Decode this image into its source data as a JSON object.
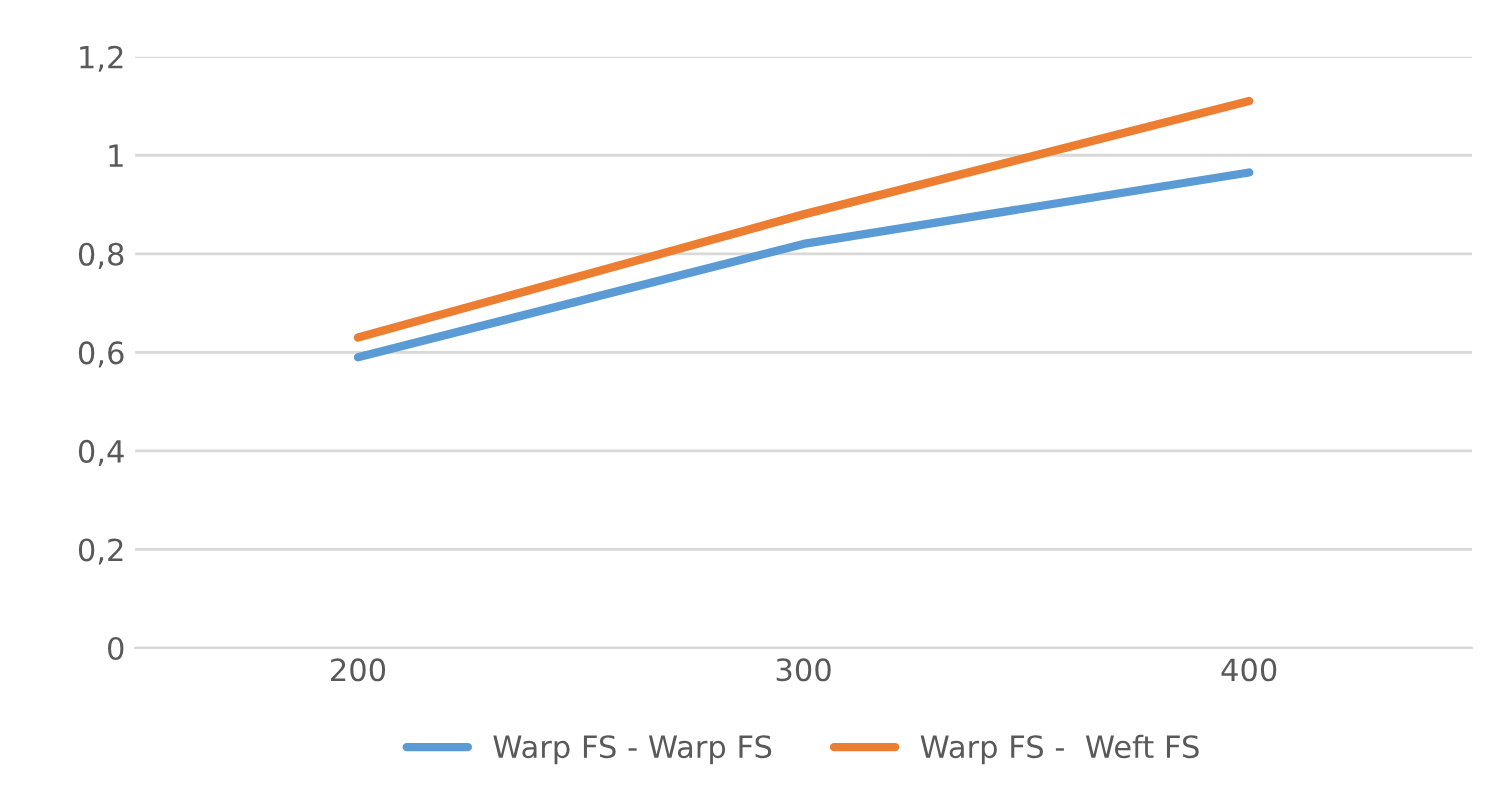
{
  "chart_data": {
    "type": "line",
    "categories": [
      "200",
      "300",
      "400"
    ],
    "series": [
      {
        "name": "Warp FS - Warp FS",
        "color": "#5b9bd5",
        "values": [
          0.59,
          0.82,
          0.965
        ]
      },
      {
        "name": "Warp FS -  Weft FS",
        "color": "#ed7d31",
        "values": [
          0.63,
          0.88,
          1.11
        ]
      }
    ],
    "ylim": [
      0,
      1.2
    ],
    "yticks": [
      0,
      {
        "value": 0.2,
        "label": "0,2"
      },
      {
        "value": 0.4,
        "label": "0,4"
      },
      {
        "value": 0.6,
        "label": "0,6"
      },
      {
        "value": 0.8,
        "label": "0,8"
      },
      1,
      {
        "value": 1.2,
        "label": "1,2"
      }
    ],
    "grid": "y",
    "legend": "bottom",
    "marker": "none",
    "line_style": "solid"
  }
}
